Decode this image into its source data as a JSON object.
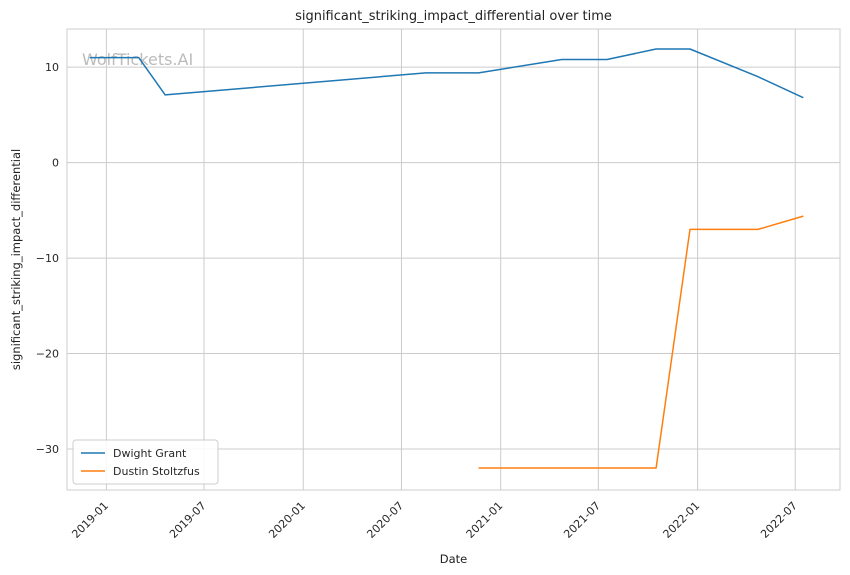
{
  "chart_data": {
    "type": "line",
    "title": "significant_striking_impact_differential over time",
    "xlabel": "Date",
    "ylabel": "significant_striking_impact_differential",
    "watermark": "WolfTickets.AI",
    "xlim": [
      "2018-10-20",
      "2022-09-22"
    ],
    "ylim": [
      -34.3,
      14.0
    ],
    "x_ticks": [
      "2019-01-01",
      "2019-07-01",
      "2020-01-01",
      "2020-07-01",
      "2021-01-01",
      "2021-07-01",
      "2022-01-01",
      "2022-07-01"
    ],
    "x_tick_labels": [
      "2019-01",
      "2019-07",
      "2020-01",
      "2020-07",
      "2021-01",
      "2021-07",
      "2022-01",
      "2022-07"
    ],
    "y_ticks": [
      10,
      0,
      -10,
      -20,
      -30
    ],
    "y_tick_labels": [
      "10",
      "0",
      "−10",
      "−20",
      "−30"
    ],
    "grid": true,
    "legend_position": "lower-left",
    "series": [
      {
        "name": "Dwight Grant",
        "color": "#1f77b4",
        "x": [
          "2018-12-01",
          "2019-03-02",
          "2019-04-20",
          "2020-08-15",
          "2020-11-21",
          "2021-04-24",
          "2021-07-17",
          "2021-10-16",
          "2021-12-18",
          "2022-04-23",
          "2022-07-16"
        ],
        "y": [
          11.0,
          11.0,
          7.1,
          9.4,
          9.4,
          10.8,
          10.8,
          11.9,
          11.9,
          9.0,
          6.8
        ]
      },
      {
        "name": "Dustin Stoltzfus",
        "color": "#ff7f0e",
        "x": [
          "2020-11-21",
          "2021-10-16",
          "2021-12-18",
          "2022-04-23",
          "2022-07-16"
        ],
        "y": [
          -32.0,
          -32.0,
          -7.0,
          -7.0,
          -5.6
        ]
      }
    ]
  }
}
